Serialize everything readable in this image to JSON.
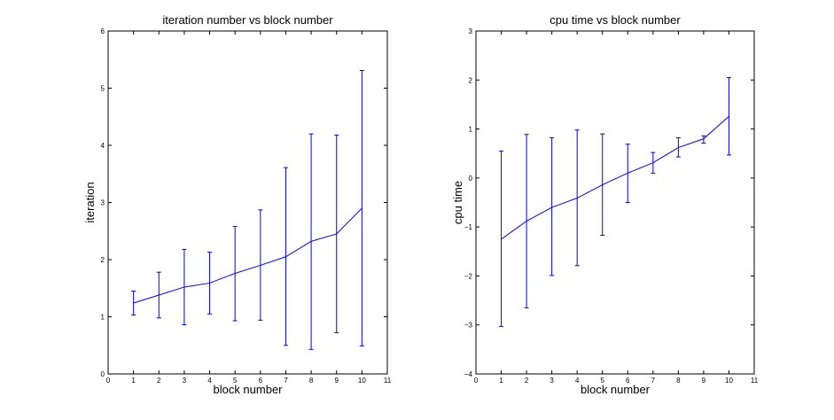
{
  "chart_data": [
    {
      "type": "line",
      "title": "iteration number vs block number",
      "xlabel": "block number",
      "ylabel": "iteration",
      "xlim": [
        0,
        11
      ],
      "ylim": [
        0,
        6
      ],
      "xticks": [
        0,
        1,
        2,
        3,
        4,
        5,
        6,
        7,
        8,
        9,
        10,
        11
      ],
      "yticks": [
        0,
        1,
        2,
        3,
        4,
        5,
        6
      ],
      "grid": false,
      "series": [
        {
          "color": "#0000ff",
          "x": [
            1,
            2,
            3,
            4,
            5,
            6,
            7,
            8,
            9,
            10
          ],
          "y": [
            1.24,
            1.38,
            1.52,
            1.59,
            1.76,
            1.9,
            2.05,
            2.32,
            2.45,
            2.9
          ],
          "lower": [
            1.03,
            0.98,
            0.86,
            1.05,
            0.93,
            0.94,
            0.5,
            0.43,
            0.72,
            0.49
          ],
          "upper": [
            1.45,
            1.78,
            2.18,
            2.13,
            2.58,
            2.87,
            3.61,
            4.2,
            4.18,
            5.31
          ]
        }
      ]
    },
    {
      "type": "line",
      "title": "cpu time vs block number",
      "xlabel": "block number",
      "ylabel": "cpu time",
      "xlim": [
        0,
        11
      ],
      "ylim": [
        -4,
        3
      ],
      "xticks": [
        0,
        1,
        2,
        3,
        4,
        5,
        6,
        7,
        8,
        9,
        10,
        11
      ],
      "yticks": [
        -4,
        -3,
        -2,
        -1,
        0,
        1,
        2,
        3
      ],
      "grid": false,
      "series": [
        {
          "color": "#0000ff",
          "x": [
            1,
            2,
            3,
            4,
            5,
            6,
            7,
            8,
            9,
            10
          ],
          "y": [
            -1.25,
            -0.88,
            -0.6,
            -0.41,
            -0.14,
            0.1,
            0.31,
            0.62,
            0.8,
            1.26
          ],
          "lower": [
            -3.03,
            -2.65,
            -1.99,
            -1.79,
            -1.17,
            -0.5,
            0.1,
            0.43,
            0.71,
            0.47
          ],
          "upper": [
            0.55,
            0.89,
            0.82,
            0.98,
            0.9,
            0.69,
            0.52,
            0.82,
            0.86,
            2.05
          ]
        }
      ]
    }
  ]
}
